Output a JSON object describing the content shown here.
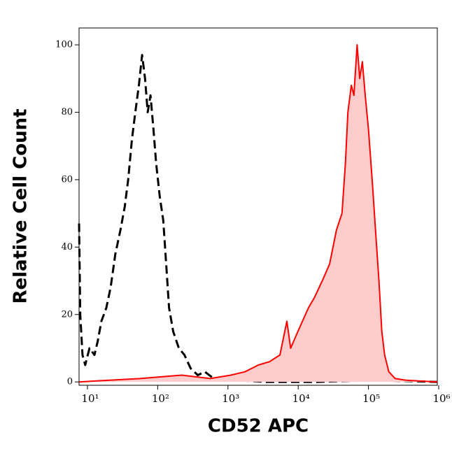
{
  "chart_data": {
    "type": "histogram-overlay",
    "xlabel": "CD52 APC",
    "ylabel": "Relative Cell Count",
    "xscale": "log",
    "xlim": [
      7.6,
      955000
    ],
    "ylim": [
      -1,
      105
    ],
    "xticks": [
      {
        "value": 10,
        "label": "10¹"
      },
      {
        "value": 100,
        "label": "10²"
      },
      {
        "value": 1000,
        "label": "10³"
      },
      {
        "value": 10000,
        "label": "10⁴"
      },
      {
        "value": 100000,
        "label": "10⁵"
      },
      {
        "value": 1000000,
        "label": "10⁶"
      }
    ],
    "yticks": [
      0,
      20,
      40,
      60,
      80,
      100
    ],
    "series": [
      {
        "color": "#000000",
        "style": "dashed",
        "filled": false,
        "x": [
          7.6,
          7.9,
          8.5,
          9.3,
          10.7,
          12.6,
          14,
          15.8,
          18.6,
          21.4,
          25,
          29.5,
          34,
          38,
          43,
          48,
          54,
          60,
          66,
          72,
          79,
          87,
          95,
          107,
          120,
          132,
          145,
          166,
          200,
          240,
          295,
          372,
          468,
          630,
          890,
          1400,
          3500,
          18000,
          112000,
          955000
        ],
        "values": [
          47,
          20,
          8,
          5,
          10,
          8,
          12,
          18,
          22,
          28,
          38,
          45,
          52,
          60,
          72,
          80,
          88,
          97,
          90,
          80,
          85,
          75,
          65,
          55,
          48,
          35,
          22,
          15,
          10,
          8,
          4,
          2,
          3,
          1,
          1,
          0.5,
          0,
          0,
          0.5,
          0
        ]
      },
      {
        "color": "#ff0000",
        "fill": "#ffcccc",
        "style": "solid",
        "filled": true,
        "x": [
          7.6,
          56,
          220,
          560,
          1100,
          1750,
          2700,
          3900,
          5500,
          6900,
          7800,
          9900,
          14000,
          17000,
          22000,
          28000,
          35000,
          42000,
          47000,
          51000,
          57000,
          62000,
          69000,
          75000,
          82000,
          90000,
          100000,
          113000,
          126000,
          141000,
          155000,
          170000,
          195000,
          240000,
          340000,
          955000
        ],
        "values": [
          0,
          1,
          2,
          1,
          2,
          3,
          5,
          6,
          8,
          18,
          10,
          15,
          22,
          25,
          30,
          35,
          45,
          50,
          65,
          80,
          88,
          85,
          100,
          90,
          95,
          85,
          75,
          60,
          45,
          30,
          15,
          8,
          3,
          1,
          0.5,
          0
        ]
      }
    ]
  }
}
